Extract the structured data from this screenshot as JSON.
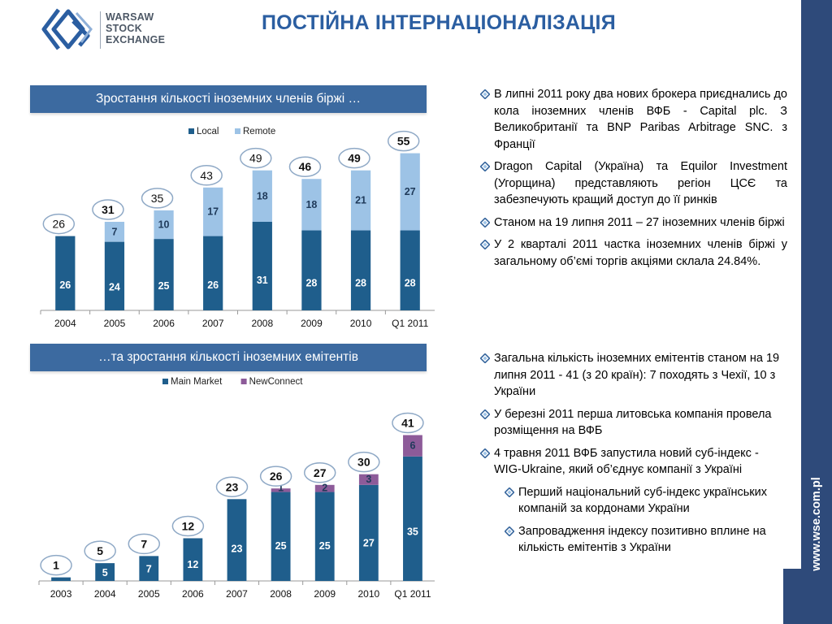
{
  "logo": {
    "lines": [
      "WARSAW",
      "STOCK",
      "EXCHANGE"
    ],
    "icon": "wse-logo-icon",
    "color": "#2b5ea1"
  },
  "title": "ПОСТІЙНА ІНТЕРНАЦІОНАЛІЗАЦІЯ",
  "sidebar": {
    "url": "www.wse.com.pl",
    "color": "#2e4a7a"
  },
  "section1": {
    "banner": "Зростання кількості іноземних членів біржі …"
  },
  "section2": {
    "banner": "…та зростання кількості іноземних емітентів"
  },
  "chart_data": [
    {
      "type": "bar",
      "stacked": true,
      "legend_position": "top",
      "categories": [
        "2004",
        "2005",
        "2006",
        "2007",
        "2008",
        "2009",
        "2010",
        "Q1 2011"
      ],
      "series": [
        {
          "name": "Local",
          "values": [
            26,
            24,
            25,
            26,
            31,
            28,
            28,
            28
          ],
          "color": "#1f5e8c"
        },
        {
          "name": "Remote",
          "values": [
            0,
            7,
            10,
            17,
            18,
            18,
            21,
            27
          ],
          "color": "#9dc3e6"
        }
      ],
      "segment_labels": [
        [
          "26",
          "24",
          "25",
          "26",
          "31",
          "28",
          "28",
          "28"
        ],
        [
          "",
          "7",
          "10",
          "17",
          "18",
          "18",
          "21",
          "27"
        ]
      ],
      "totals": [
        "26",
        "31",
        "35",
        "43",
        "49",
        "46",
        "49",
        "55"
      ],
      "totals_bold": [
        false,
        true,
        false,
        false,
        false,
        true,
        true,
        true
      ],
      "ylim": [
        0,
        60
      ],
      "grid": false
    },
    {
      "type": "bar",
      "stacked": true,
      "legend_position": "top",
      "categories": [
        "2003",
        "2004",
        "2005",
        "2006",
        "2007",
        "2008",
        "2009",
        "2010",
        "Q1 2011"
      ],
      "series": [
        {
          "name": "Main Market",
          "values": [
            1,
            5,
            7,
            12,
            23,
            25,
            25,
            27,
            35
          ],
          "color": "#1f5e8c"
        },
        {
          "name": "NewConnect",
          "values": [
            0,
            0,
            0,
            0,
            0,
            1,
            2,
            3,
            6
          ],
          "color": "#8d5b99"
        }
      ],
      "segment_labels": [
        [
          "",
          "5",
          "7",
          "12",
          "23",
          "25",
          "25",
          "27",
          "35"
        ],
        [
          "",
          "",
          "",
          "",
          "",
          "1",
          "2",
          "3",
          "6"
        ]
      ],
      "totals": [
        "1",
        "5",
        "7",
        "12",
        "23",
        "26",
        "27",
        "30",
        "41"
      ],
      "totals_bold": [
        true,
        true,
        true,
        true,
        true,
        true,
        true,
        true,
        true
      ],
      "ylim": [
        0,
        45
      ],
      "grid": false
    }
  ],
  "bullets_top": [
    "В липні 2011 року два нових брокера приєднались до кола іноземних членів ВФБ - Capital plc. З Великобританії та BNP Paribas Arbitrage SNC. з Франції",
    "Dragon Capital (Україна) та Equilor Investment (Угорщина) представляють регіон ЦСЄ та забезпечують кращий доступ до її ринків",
    " Станом на 19 липня 2011 – 27 іноземних членів біржі",
    "У 2 кварталі 2011 частка іноземних членів біржі у загальному об’ємі торгів акціями склала 24.84%."
  ],
  "bullets_bottom": [
    " Загальна кількість іноземних емітентів станом на 19 липня 2011 -  41 (з 20 країн): 7 походять з Чехії, 10 з України",
    "У березні 2011 перша литовська компанія провела розміщення на ВФБ",
    " 4 травня 2011 ВФБ запустила новий суб-індекс - WIG-Ukraine, який об’єднує компанії з Україні"
  ],
  "bullets_sub": [
    " Перший національний суб-індекс українських компаній за кордонами України",
    " Запровадження індексу позитивно вплине на кількість емітентів з України"
  ],
  "colors": {
    "title": "#2b5ea1",
    "banner": "#3c6aa0",
    "bullet_icon": "#3c6aa0"
  }
}
